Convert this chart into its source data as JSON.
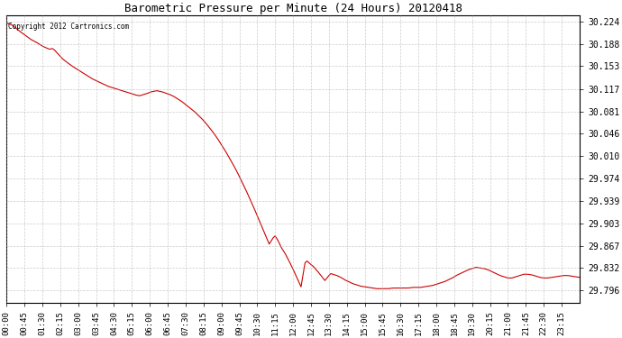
{
  "title": "Barometric Pressure per Minute (24 Hours) 20120418",
  "copyright": "Copyright 2012 Cartronics.com",
  "line_color": "#cc0000",
  "background_color": "#ffffff",
  "grid_color": "#aaaaaa",
  "yticks": [
    29.796,
    29.832,
    29.867,
    29.903,
    29.939,
    29.974,
    30.01,
    30.046,
    30.081,
    30.117,
    30.153,
    30.188,
    30.224
  ],
  "ylim": [
    29.776,
    30.234
  ],
  "xtick_labels": [
    "00:00",
    "00:45",
    "01:30",
    "02:15",
    "03:00",
    "03:45",
    "04:30",
    "05:15",
    "06:00",
    "06:45",
    "07:30",
    "08:15",
    "09:00",
    "09:45",
    "10:30",
    "11:15",
    "12:00",
    "12:45",
    "13:30",
    "14:15",
    "15:00",
    "15:45",
    "16:30",
    "17:15",
    "18:00",
    "18:45",
    "19:30",
    "20:15",
    "21:00",
    "21:45",
    "22:30",
    "23:15"
  ],
  "keypoints": [
    [
      0,
      30.222
    ],
    [
      15,
      30.218
    ],
    [
      30,
      30.21
    ],
    [
      45,
      30.203
    ],
    [
      60,
      30.196
    ],
    [
      75,
      30.191
    ],
    [
      90,
      30.185
    ],
    [
      100,
      30.182
    ],
    [
      108,
      30.18
    ],
    [
      115,
      30.181
    ],
    [
      120,
      30.179
    ],
    [
      130,
      30.172
    ],
    [
      140,
      30.165
    ],
    [
      150,
      30.16
    ],
    [
      165,
      30.153
    ],
    [
      175,
      30.149
    ],
    [
      185,
      30.145
    ],
    [
      195,
      30.141
    ],
    [
      205,
      30.137
    ],
    [
      215,
      30.133
    ],
    [
      225,
      30.13
    ],
    [
      235,
      30.127
    ],
    [
      245,
      30.124
    ],
    [
      255,
      30.121
    ],
    [
      265,
      30.119
    ],
    [
      275,
      30.117
    ],
    [
      285,
      30.115
    ],
    [
      295,
      30.113
    ],
    [
      305,
      30.111
    ],
    [
      315,
      30.109
    ],
    [
      325,
      30.107
    ],
    [
      335,
      30.106
    ],
    [
      345,
      30.108
    ],
    [
      355,
      30.11
    ],
    [
      362,
      30.112
    ],
    [
      370,
      30.113
    ],
    [
      378,
      30.114
    ],
    [
      385,
      30.113
    ],
    [
      392,
      30.112
    ],
    [
      400,
      30.11
    ],
    [
      410,
      30.108
    ],
    [
      420,
      30.105
    ],
    [
      430,
      30.101
    ],
    [
      440,
      30.097
    ],
    [
      450,
      30.092
    ],
    [
      460,
      30.087
    ],
    [
      470,
      30.082
    ],
    [
      480,
      30.076
    ],
    [
      490,
      30.07
    ],
    [
      500,
      30.063
    ],
    [
      510,
      30.055
    ],
    [
      520,
      30.047
    ],
    [
      530,
      30.038
    ],
    [
      540,
      30.028
    ],
    [
      550,
      30.018
    ],
    [
      560,
      30.007
    ],
    [
      570,
      29.996
    ],
    [
      580,
      29.984
    ],
    [
      590,
      29.971
    ],
    [
      600,
      29.958
    ],
    [
      610,
      29.944
    ],
    [
      620,
      29.93
    ],
    [
      630,
      29.915
    ],
    [
      640,
      29.9
    ],
    [
      650,
      29.885
    ],
    [
      660,
      29.87
    ],
    [
      670,
      29.88
    ],
    [
      675,
      29.883
    ],
    [
      680,
      29.878
    ],
    [
      685,
      29.872
    ],
    [
      690,
      29.865
    ],
    [
      700,
      29.855
    ],
    [
      710,
      29.843
    ],
    [
      720,
      29.83
    ],
    [
      730,
      29.816
    ],
    [
      740,
      29.802
    ],
    [
      750,
      29.84
    ],
    [
      755,
      29.843
    ],
    [
      760,
      29.84
    ],
    [
      770,
      29.835
    ],
    [
      780,
      29.828
    ],
    [
      790,
      29.82
    ],
    [
      800,
      29.812
    ],
    [
      810,
      29.82
    ],
    [
      815,
      29.823
    ],
    [
      820,
      29.822
    ],
    [
      830,
      29.82
    ],
    [
      840,
      29.817
    ],
    [
      850,
      29.813
    ],
    [
      860,
      29.81
    ],
    [
      870,
      29.807
    ],
    [
      880,
      29.805
    ],
    [
      890,
      29.803
    ],
    [
      900,
      29.802
    ],
    [
      910,
      29.801
    ],
    [
      920,
      29.8
    ],
    [
      930,
      29.799
    ],
    [
      940,
      29.799
    ],
    [
      950,
      29.799
    ],
    [
      960,
      29.799
    ],
    [
      970,
      29.8
    ],
    [
      980,
      29.8
    ],
    [
      990,
      29.8
    ],
    [
      1000,
      29.8
    ],
    [
      1010,
      29.8
    ],
    [
      1020,
      29.801
    ],
    [
      1030,
      29.801
    ],
    [
      1040,
      29.801
    ],
    [
      1050,
      29.802
    ],
    [
      1060,
      29.803
    ],
    [
      1070,
      29.804
    ],
    [
      1080,
      29.806
    ],
    [
      1090,
      29.808
    ],
    [
      1100,
      29.81
    ],
    [
      1110,
      29.813
    ],
    [
      1120,
      29.816
    ],
    [
      1130,
      29.82
    ],
    [
      1140,
      29.823
    ],
    [
      1150,
      29.826
    ],
    [
      1160,
      29.829
    ],
    [
      1170,
      29.831
    ],
    [
      1180,
      29.833
    ],
    [
      1190,
      29.832
    ],
    [
      1200,
      29.831
    ],
    [
      1210,
      29.829
    ],
    [
      1220,
      29.826
    ],
    [
      1230,
      29.823
    ],
    [
      1240,
      29.82
    ],
    [
      1250,
      29.818
    ],
    [
      1260,
      29.816
    ],
    [
      1270,
      29.816
    ],
    [
      1280,
      29.818
    ],
    [
      1290,
      29.82
    ],
    [
      1300,
      29.822
    ],
    [
      1310,
      29.822
    ],
    [
      1320,
      29.821
    ],
    [
      1330,
      29.819
    ],
    [
      1340,
      29.817
    ],
    [
      1350,
      29.816
    ],
    [
      1360,
      29.816
    ],
    [
      1370,
      29.817
    ],
    [
      1380,
      29.818
    ],
    [
      1390,
      29.819
    ],
    [
      1400,
      29.82
    ],
    [
      1410,
      29.82
    ],
    [
      1420,
      29.819
    ],
    [
      1430,
      29.818
    ],
    [
      1440,
      29.817
    ]
  ]
}
